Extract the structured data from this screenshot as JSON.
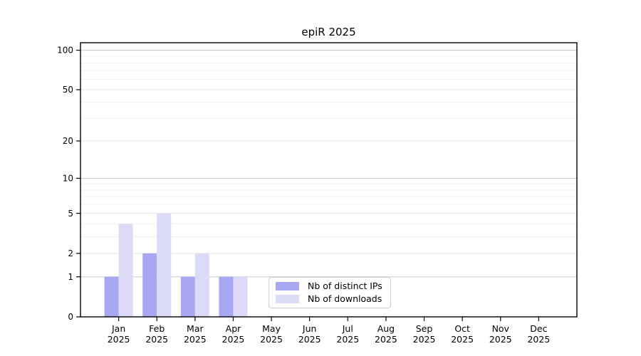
{
  "title": "epiR 2025",
  "chart_data": {
    "type": "bar",
    "title": "epiR 2025",
    "categories": [
      "Jan",
      "Feb",
      "Mar",
      "Apr",
      "May",
      "Jun",
      "Jul",
      "Aug",
      "Sep",
      "Oct",
      "Nov",
      "Dec"
    ],
    "category_year": "2025",
    "series": [
      {
        "name": "Nb of distinct IPs",
        "color": "#a7a7f3",
        "values": [
          1,
          2,
          1,
          1,
          0,
          0,
          0,
          0,
          0,
          0,
          0,
          0
        ]
      },
      {
        "name": "Nb of downloads",
        "color": "#dbdbf8",
        "values": [
          4,
          5,
          2,
          1,
          0,
          0,
          0,
          0,
          0,
          0,
          0,
          0
        ]
      }
    ],
    "xlabel": "",
    "ylabel": "",
    "scale": "log1p",
    "ylim": [
      0,
      114
    ],
    "y_ticks": [
      0,
      1,
      2,
      5,
      10,
      20,
      50,
      100
    ],
    "y_minor_gridlines": [
      3,
      4,
      6,
      7,
      8,
      9,
      30,
      40,
      60,
      70,
      80,
      90
    ],
    "grid": "horizontal",
    "legend_position": "inside-bottom-center",
    "colors": {
      "axis": "#000000",
      "decade_gridline": "#c9c9c9",
      "labeled_gridline": "#e6e6e6",
      "minor_gridline": "#f0f0f0",
      "background": "#ffffff"
    }
  }
}
